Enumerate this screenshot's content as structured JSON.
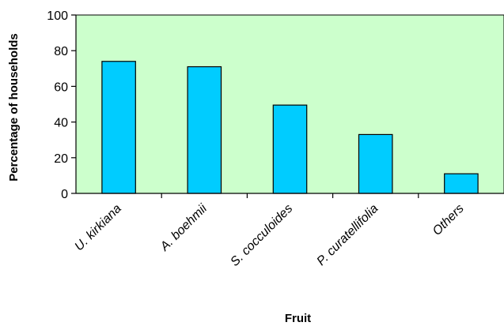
{
  "chart_data": {
    "type": "bar",
    "categories": [
      "U. kirkiana",
      "A. boehmii",
      "S. cocculoides",
      "P. curatellifolia",
      "Others"
    ],
    "values": [
      74,
      71,
      49.5,
      33,
      11
    ],
    "xlabel": "Fruit",
    "ylabel": "Percentage of households",
    "ylim": [
      0,
      100
    ],
    "yticks": [
      0,
      20,
      40,
      60,
      80,
      100
    ],
    "grid": false,
    "colors": {
      "plot_background": "#ccffcc",
      "bar_fill": "#00ccff",
      "bar_stroke": "#000000"
    }
  }
}
